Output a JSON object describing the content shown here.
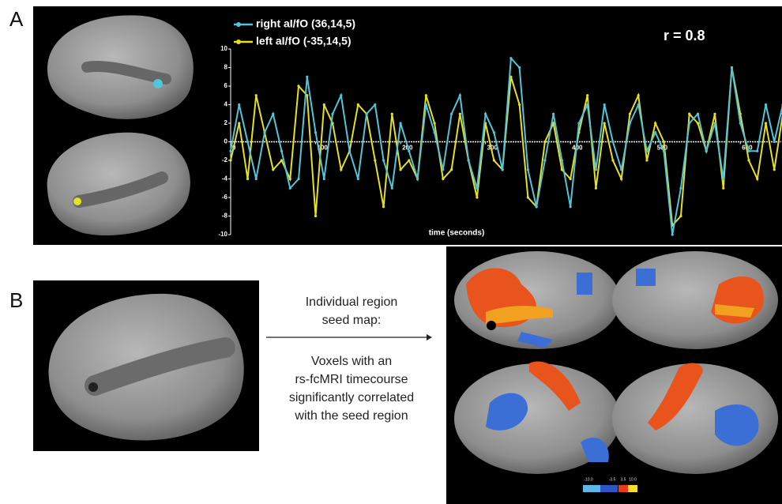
{
  "panel_a": {
    "label": "A",
    "r_text": "r = 0.8"
  },
  "panel_b": {
    "label": "B",
    "caption_lines": [
      "Individual region",
      "seed map:",
      "Voxels with an",
      "rs-fcMRI timecourse",
      "significantly correlated",
      "with the seed region"
    ],
    "colorbar_labels": [
      "-10.0",
      "-3.5",
      "3.5",
      "10.0"
    ]
  },
  "chart_data": {
    "type": "line",
    "x_label": "time (seconds)",
    "x": [
      0,
      10,
      20,
      30,
      40,
      50,
      60,
      70,
      80,
      90,
      100,
      110,
      120,
      130,
      140,
      150,
      160,
      170,
      180,
      190,
      200,
      210,
      220,
      230,
      240,
      250,
      260,
      270,
      280,
      290,
      300,
      310,
      320,
      330,
      340,
      350,
      360,
      370,
      380,
      390,
      400,
      410,
      420,
      430,
      440,
      450,
      460,
      470,
      480,
      490,
      500,
      510,
      520,
      530,
      540,
      550,
      560,
      570,
      580,
      590,
      600,
      610,
      620,
      630,
      640,
      650
    ],
    "series": [
      {
        "name": "right aI/fO (36,14,5)",
        "color": "#52c5d8",
        "values": [
          -1,
          4,
          0,
          -4,
          1,
          3,
          -1,
          -5,
          -4,
          7,
          1,
          -4,
          3,
          5,
          -1,
          -4,
          3,
          4,
          -2,
          -5,
          2,
          -1,
          -4,
          4,
          1,
          -3,
          3,
          5,
          -2,
          -5,
          3,
          1,
          -3,
          9,
          8,
          -3,
          -7,
          -2,
          3,
          -2,
          -7,
          2,
          4,
          -3,
          4,
          0,
          -3,
          2,
          4,
          -1,
          1,
          -1,
          -10,
          -5,
          2,
          3,
          -1,
          2,
          -4,
          8,
          2,
          -1,
          -1,
          4,
          0,
          4
        ]
      },
      {
        "name": "left aI/fO (-35,14,5)",
        "color": "#e6e022",
        "values": [
          -2,
          2,
          -4,
          5,
          1,
          -3,
          -2,
          -4,
          6,
          5,
          -8,
          4,
          2,
          -3,
          -1,
          4,
          3,
          -2,
          -7,
          3,
          -3,
          -2,
          -4,
          5,
          2,
          -4,
          -3,
          3,
          -2,
          -6,
          2,
          -2,
          -3,
          7,
          4,
          -6,
          -7,
          0,
          2,
          -3,
          -4,
          1,
          5,
          -5,
          2,
          -2,
          -4,
          3,
          5,
          -2,
          2,
          0,
          -9,
          -8,
          3,
          2,
          -1,
          3,
          -5,
          8,
          3,
          -2,
          -4,
          2,
          -3,
          3
        ]
      }
    ],
    "xlim": [
      0,
      650
    ],
    "xticks": [
      0,
      100,
      200,
      300,
      400,
      500,
      600
    ],
    "ylim": [
      -10,
      10
    ],
    "yticks": [
      -10,
      -8,
      -6,
      -4,
      -2,
      0,
      2,
      4,
      6,
      8,
      10
    ]
  }
}
